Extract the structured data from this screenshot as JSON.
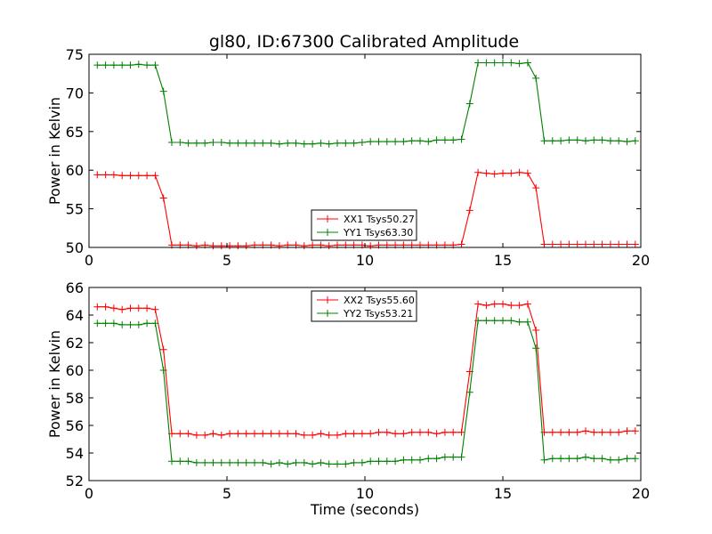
{
  "figure": {
    "title": "gl80, ID:67300 Calibrated Amplitude"
  },
  "chart_data": [
    {
      "type": "line",
      "title": "gl80, ID:67300 Calibrated Amplitude",
      "xlabel": "",
      "ylabel": "Power in Kelvin",
      "xlim": [
        0,
        20
      ],
      "ylim": [
        50,
        75
      ],
      "xticks": [
        0,
        5,
        10,
        15,
        20
      ],
      "yticks": [
        50,
        55,
        60,
        65,
        70,
        75
      ],
      "grid": false,
      "legend_position": "lower-center",
      "x": [
        0.3,
        0.6,
        0.9,
        1.2,
        1.5,
        1.8,
        2.1,
        2.4,
        2.7,
        3.0,
        3.3,
        3.6,
        3.9,
        4.2,
        4.5,
        4.8,
        5.1,
        5.4,
        5.7,
        6.0,
        6.3,
        6.6,
        6.9,
        7.2,
        7.5,
        7.8,
        8.1,
        8.4,
        8.7,
        9.0,
        9.3,
        9.6,
        9.9,
        10.2,
        10.5,
        10.8,
        11.1,
        11.4,
        11.7,
        12.0,
        12.3,
        12.6,
        12.9,
        13.2,
        13.5,
        13.8,
        14.1,
        14.4,
        14.7,
        15.0,
        15.3,
        15.6,
        15.9,
        16.2,
        16.5,
        16.8,
        17.1,
        17.4,
        17.7,
        18.0,
        18.3,
        18.6,
        18.9,
        19.2,
        19.5,
        19.8
      ],
      "series": [
        {
          "name": "XX1 Tsys50.27",
          "color": "#ff0000",
          "values": [
            59.4,
            59.4,
            59.4,
            59.3,
            59.3,
            59.3,
            59.3,
            59.3,
            56.4,
            50.3,
            50.3,
            50.3,
            50.2,
            50.3,
            50.2,
            50.2,
            50.2,
            50.2,
            50.2,
            50.3,
            50.3,
            50.3,
            50.2,
            50.3,
            50.3,
            50.2,
            50.3,
            50.3,
            50.2,
            50.3,
            50.3,
            50.3,
            50.3,
            50.2,
            50.3,
            50.3,
            50.3,
            50.3,
            50.3,
            50.3,
            50.3,
            50.3,
            50.3,
            50.3,
            50.4,
            54.8,
            59.7,
            59.6,
            59.5,
            59.6,
            59.6,
            59.7,
            59.6,
            57.7,
            50.4,
            50.4,
            50.4,
            50.4,
            50.4,
            50.4,
            50.4,
            50.4,
            50.4,
            50.4,
            50.4,
            50.4
          ]
        },
        {
          "name": "YY1 Tsys63.30",
          "color": "#008000",
          "values": [
            73.6,
            73.6,
            73.6,
            73.6,
            73.6,
            73.7,
            73.6,
            73.6,
            70.2,
            63.6,
            63.6,
            63.5,
            63.5,
            63.5,
            63.6,
            63.6,
            63.5,
            63.5,
            63.5,
            63.5,
            63.5,
            63.5,
            63.4,
            63.5,
            63.5,
            63.4,
            63.4,
            63.5,
            63.4,
            63.5,
            63.5,
            63.5,
            63.6,
            63.7,
            63.7,
            63.7,
            63.7,
            63.7,
            63.8,
            63.8,
            63.7,
            63.9,
            63.9,
            63.9,
            64.0,
            68.6,
            73.9,
            73.9,
            73.9,
            73.9,
            73.9,
            73.8,
            73.9,
            71.9,
            63.8,
            63.8,
            63.8,
            63.9,
            63.9,
            63.8,
            63.9,
            63.9,
            63.8,
            63.8,
            63.7,
            63.8
          ]
        }
      ]
    },
    {
      "type": "line",
      "title": "",
      "xlabel": "Time (seconds)",
      "ylabel": "Power in Kelvin",
      "xlim": [
        0,
        20
      ],
      "ylim": [
        52,
        66
      ],
      "xticks": [
        0,
        5,
        10,
        15,
        20
      ],
      "yticks": [
        52,
        54,
        56,
        58,
        60,
        62,
        64,
        66
      ],
      "grid": false,
      "legend_position": "upper-center",
      "x": [
        0.3,
        0.6,
        0.9,
        1.2,
        1.5,
        1.8,
        2.1,
        2.4,
        2.7,
        3.0,
        3.3,
        3.6,
        3.9,
        4.2,
        4.5,
        4.8,
        5.1,
        5.4,
        5.7,
        6.0,
        6.3,
        6.6,
        6.9,
        7.2,
        7.5,
        7.8,
        8.1,
        8.4,
        8.7,
        9.0,
        9.3,
        9.6,
        9.9,
        10.2,
        10.5,
        10.8,
        11.1,
        11.4,
        11.7,
        12.0,
        12.3,
        12.6,
        12.9,
        13.2,
        13.5,
        13.8,
        14.1,
        14.4,
        14.7,
        15.0,
        15.3,
        15.6,
        15.9,
        16.2,
        16.5,
        16.8,
        17.1,
        17.4,
        17.7,
        18.0,
        18.3,
        18.6,
        18.9,
        19.2,
        19.5,
        19.8
      ],
      "series": [
        {
          "name": "XX2 Tsys55.60",
          "color": "#ff0000",
          "values": [
            64.6,
            64.6,
            64.5,
            64.4,
            64.5,
            64.5,
            64.5,
            64.4,
            61.5,
            55.4,
            55.4,
            55.4,
            55.3,
            55.3,
            55.4,
            55.3,
            55.4,
            55.4,
            55.4,
            55.4,
            55.4,
            55.4,
            55.4,
            55.4,
            55.4,
            55.3,
            55.3,
            55.4,
            55.3,
            55.3,
            55.4,
            55.4,
            55.4,
            55.4,
            55.5,
            55.5,
            55.4,
            55.4,
            55.5,
            55.5,
            55.5,
            55.4,
            55.5,
            55.5,
            55.5,
            59.9,
            64.8,
            64.7,
            64.8,
            64.8,
            64.7,
            64.7,
            64.8,
            62.9,
            55.5,
            55.5,
            55.5,
            55.5,
            55.5,
            55.6,
            55.5,
            55.5,
            55.5,
            55.5,
            55.6,
            55.6
          ]
        },
        {
          "name": "YY2 Tsys53.21",
          "color": "#008000",
          "values": [
            63.4,
            63.4,
            63.4,
            63.3,
            63.3,
            63.3,
            63.4,
            63.4,
            60.0,
            53.4,
            53.4,
            53.4,
            53.3,
            53.3,
            53.3,
            53.3,
            53.3,
            53.3,
            53.3,
            53.3,
            53.3,
            53.2,
            53.3,
            53.2,
            53.3,
            53.3,
            53.2,
            53.3,
            53.2,
            53.2,
            53.2,
            53.3,
            53.3,
            53.4,
            53.4,
            53.4,
            53.4,
            53.5,
            53.5,
            53.5,
            53.6,
            53.6,
            53.7,
            53.7,
            53.7,
            58.4,
            63.6,
            63.6,
            63.6,
            63.6,
            63.6,
            63.5,
            63.5,
            61.6,
            53.5,
            53.6,
            53.6,
            53.6,
            53.6,
            53.7,
            53.6,
            53.6,
            53.5,
            53.5,
            53.6,
            53.6
          ]
        }
      ]
    }
  ]
}
